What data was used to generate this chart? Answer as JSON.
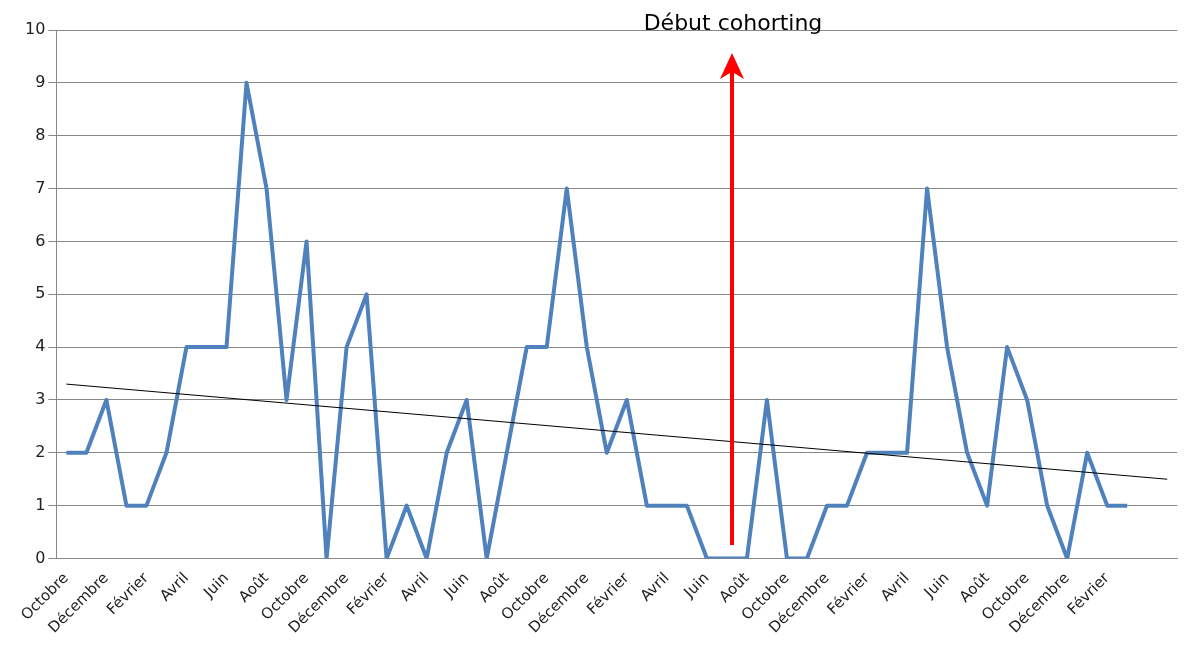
{
  "chart_data": {
    "type": "line",
    "categories": [
      "Octobre",
      null,
      "Décembre",
      null,
      "Février",
      null,
      "Avril",
      null,
      "Juin",
      null,
      "Août",
      null,
      "Octobre",
      null,
      "Décembre",
      null,
      "Février",
      null,
      "Avril",
      null,
      "Juin",
      null,
      "Août",
      null,
      "Octobre",
      null,
      "Décembre",
      null,
      "Février",
      null,
      "Avril",
      null,
      "Juin",
      null,
      "Août",
      null,
      "Octobre",
      null,
      "Décembre",
      null,
      "Février",
      null,
      "Avril",
      null,
      "Juin",
      null,
      "Août",
      null,
      "Octobre",
      null,
      "Décembre",
      null,
      "Février",
      null,
      null,
      null
    ],
    "series": [
      {
        "color": "#4f81bd",
        "values": [
          2,
          2,
          3,
          1,
          1,
          2,
          4,
          4,
          4,
          9,
          7,
          3,
          6,
          0,
          4,
          5,
          0,
          1,
          0,
          2,
          3,
          0,
          2,
          4,
          4,
          7,
          4,
          2,
          3,
          1,
          1,
          1,
          0,
          0,
          0,
          3,
          0,
          0,
          1,
          1,
          2,
          2,
          2,
          7,
          4,
          2,
          1,
          4,
          3,
          1,
          0,
          2,
          1,
          1,
          null,
          null
        ]
      },
      {
        "color": "#000000",
        "values": [
          3.3,
          null,
          null,
          null,
          null,
          null,
          null,
          null,
          null,
          null,
          null,
          null,
          null,
          null,
          null,
          null,
          null,
          null,
          null,
          null,
          null,
          null,
          null,
          null,
          null,
          null,
          null,
          null,
          null,
          null,
          null,
          null,
          null,
          null,
          null,
          null,
          null,
          null,
          null,
          null,
          null,
          null,
          null,
          null,
          null,
          null,
          null,
          null,
          null,
          null,
          null,
          null,
          null,
          null,
          null,
          1.5
        ]
      }
    ],
    "ylim": [
      0,
      10
    ],
    "yticks": [
      0,
      1,
      2,
      3,
      4,
      5,
      6,
      7,
      8,
      9,
      10
    ],
    "grid": "y",
    "legend": false,
    "marker": "none",
    "line_style": "solid",
    "annotations": [
      "Début cohorting"
    ]
  }
}
